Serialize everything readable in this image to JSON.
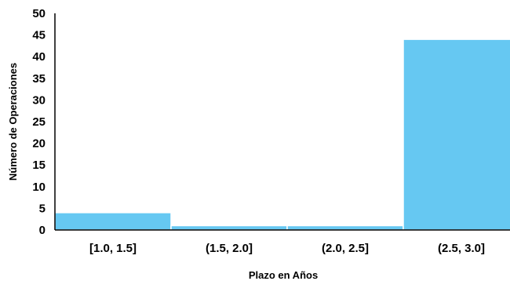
{
  "chart_data": {
    "type": "bar",
    "title": "",
    "xlabel": "Plazo en Años",
    "ylabel": "Número de Operaciones",
    "categories": [
      "[1.0, 1.5]",
      "(1.5, 2.0]",
      "(2.0, 2.5]",
      "(2.5, 3.0]"
    ],
    "values": [
      4,
      1,
      1,
      44
    ],
    "ylim": [
      0,
      50
    ],
    "yticks": [
      0,
      5,
      10,
      15,
      20,
      25,
      30,
      35,
      40,
      45,
      50
    ],
    "grid": false,
    "legend": "none",
    "colors": {
      "bar": "#66c8f2",
      "bar_edge": "#ffffff",
      "axis": "#000000"
    }
  }
}
